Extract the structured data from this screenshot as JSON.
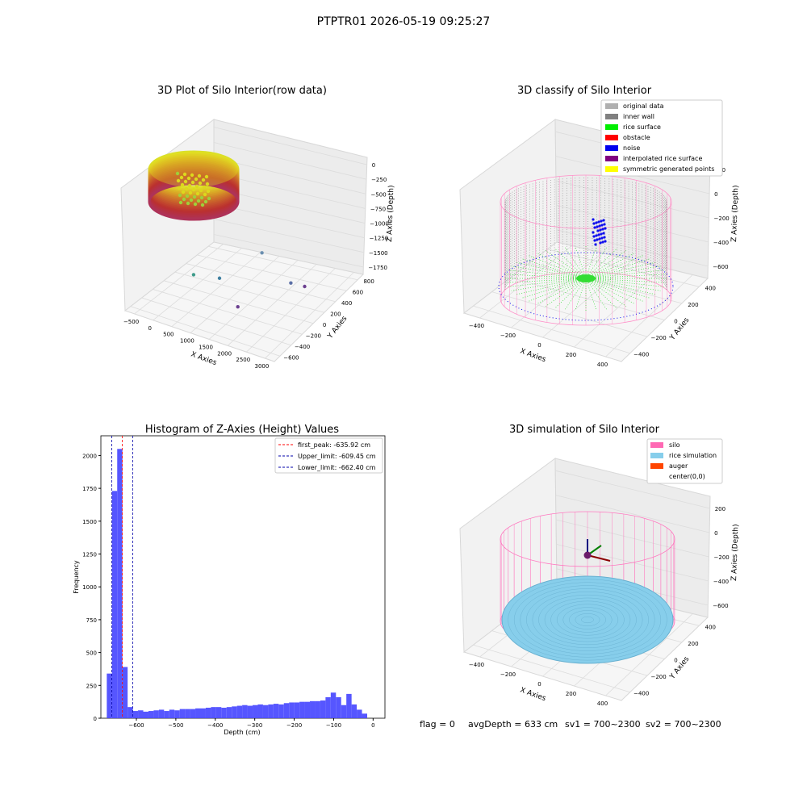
{
  "figure": {
    "suptitle": "PTPTR01 2026-05-19 09:25:27",
    "footer": {
      "flag": "flag = 0",
      "avg": "avgDepth = 633 cm",
      "sv1": "sv1 = 700~2300",
      "sv2": "sv2 = 700~2300"
    }
  },
  "chart_data": [
    {
      "type": "scatter",
      "projection": "3d",
      "title": "3D Plot of Silo Interior(row data)",
      "xlabel": "X Axies",
      "ylabel": "Y Axies",
      "zlabel": "Z Axies (Depth)",
      "xticks": [
        "−500",
        "0",
        "500",
        "1000",
        "1500",
        "2000",
        "2500",
        "3000"
      ],
      "yticks": [
        "−600",
        "−400",
        "−200",
        "0",
        "200",
        "400",
        "600",
        "800"
      ],
      "zticks": [
        "0",
        "−250",
        "−500",
        "−750",
        "−1000",
        "−1250",
        "−1500",
        "−1750"
      ],
      "xlim": [
        -600,
        3100
      ],
      "ylim": [
        -650,
        850
      ],
      "zlim": [
        -1950,
        50
      ],
      "colormap": "viridis",
      "description_points": "dense cylindrical shell of points near x≈0..500 plus sparse outliers",
      "outliers": [
        {
          "x": 300,
          "y": 300,
          "z": -1750,
          "color": "#3e9b8a"
        },
        {
          "x": 900,
          "y": 350,
          "z": -1800,
          "color": "#3e7fa0"
        },
        {
          "x": 1700,
          "y": 650,
          "z": -1600,
          "color": "#6a8fb0"
        },
        {
          "x": 2500,
          "y": 550,
          "z": -1900,
          "color": "#5b6fa6"
        },
        {
          "x": 2800,
          "y": 600,
          "z": -1950,
          "color": "#6b3f8f"
        },
        {
          "x": 1900,
          "y": -300,
          "z": -1950,
          "color": "#6b3f8f"
        }
      ]
    },
    {
      "type": "scatter",
      "projection": "3d",
      "title": "3D classify of Silo Interior",
      "xlabel": "X Axies",
      "ylabel": "Y Axies",
      "zlabel": "Z Axies (Depth)",
      "xticks": [
        "−400",
        "−200",
        "0",
        "200",
        "400"
      ],
      "yticks": [
        "−400",
        "−200",
        "0",
        "200",
        "400"
      ],
      "zticks": [
        "200",
        "0",
        "−200",
        "−400",
        "−600"
      ],
      "legend": {
        "position": "top-right",
        "entries": [
          {
            "label": "original data",
            "color": "#b0b0b0"
          },
          {
            "label": "inner wall",
            "color": "#808080"
          },
          {
            "label": "rice surface",
            "color": "#00ee00"
          },
          {
            "label": "obstacle",
            "color": "#ff0000"
          },
          {
            "label": "noise",
            "color": "#0000ee"
          },
          {
            "label": "interpolated rice surface",
            "color": "#800080"
          },
          {
            "label": "symmetric generated points",
            "color": "#ffff00"
          }
        ]
      },
      "colors": {
        "frame": "#ff8fc8",
        "wall": "#8a8a8a",
        "surface": "#33dd33",
        "noise": "#1010ee"
      }
    },
    {
      "type": "bar",
      "title": "Histogram of Z-Axies (Height) Values",
      "xlabel": "Depth (cm)",
      "ylabel": "Frequency",
      "xlim": [
        -690,
        30
      ],
      "ylim": [
        0,
        2150
      ],
      "xticks": [
        -600,
        -500,
        -400,
        -300,
        -200,
        -100,
        0
      ],
      "xticklabels": [
        "−600",
        "−500",
        "−400",
        "−300",
        "−200",
        "−100",
        "0"
      ],
      "yticks": [
        0,
        250,
        500,
        750,
        1000,
        1250,
        1500,
        1750,
        2000
      ],
      "yticklabels": [
        "0",
        "250",
        "500",
        "750",
        "1000",
        "1250",
        "1500",
        "1750",
        "2000"
      ],
      "bar_color": "#4d4dff",
      "bin_start": -675,
      "bin_width": 13.2,
      "values": [
        340,
        1730,
        2050,
        390,
        85,
        55,
        60,
        50,
        55,
        60,
        65,
        55,
        65,
        60,
        70,
        70,
        70,
        75,
        75,
        80,
        85,
        85,
        80,
        85,
        90,
        95,
        100,
        95,
        100,
        105,
        100,
        105,
        110,
        105,
        115,
        120,
        120,
        125,
        125,
        130,
        130,
        135,
        160,
        195,
        160,
        100,
        185,
        105,
        65,
        35
      ],
      "vlines": [
        {
          "value": -635.92,
          "color": "#ff0000",
          "label": "first_peak: -635.92 cm"
        },
        {
          "value": -609.45,
          "color": "#0000aa",
          "label": "Upper_limit: -609.45 cm"
        },
        {
          "value": -662.4,
          "color": "#0000aa",
          "label": "Lower_limit: -662.40 cm"
        }
      ],
      "legend": {
        "position": "top-right"
      }
    },
    {
      "type": "scatter",
      "projection": "3d",
      "title": "3D simulation of Silo Interior",
      "xlabel": "X Axies",
      "ylabel": "Y Axies",
      "zlabel": "Z Axies (Depth)",
      "xticks": [
        "−400",
        "−200",
        "0",
        "200",
        "400"
      ],
      "yticks": [
        "−400",
        "−200",
        "0",
        "200",
        "400"
      ],
      "zticks": [
        "200",
        "0",
        "−200",
        "−400",
        "−600"
      ],
      "legend": {
        "position": "top-right",
        "entries": [
          {
            "label": "silo",
            "color": "#ff69b4"
          },
          {
            "label": "rice simulation",
            "color": "#87ceeb"
          },
          {
            "label": "auger",
            "color": "#ff4500"
          },
          {
            "label": "center(0,0)",
            "color": ""
          }
        ]
      }
    }
  ]
}
